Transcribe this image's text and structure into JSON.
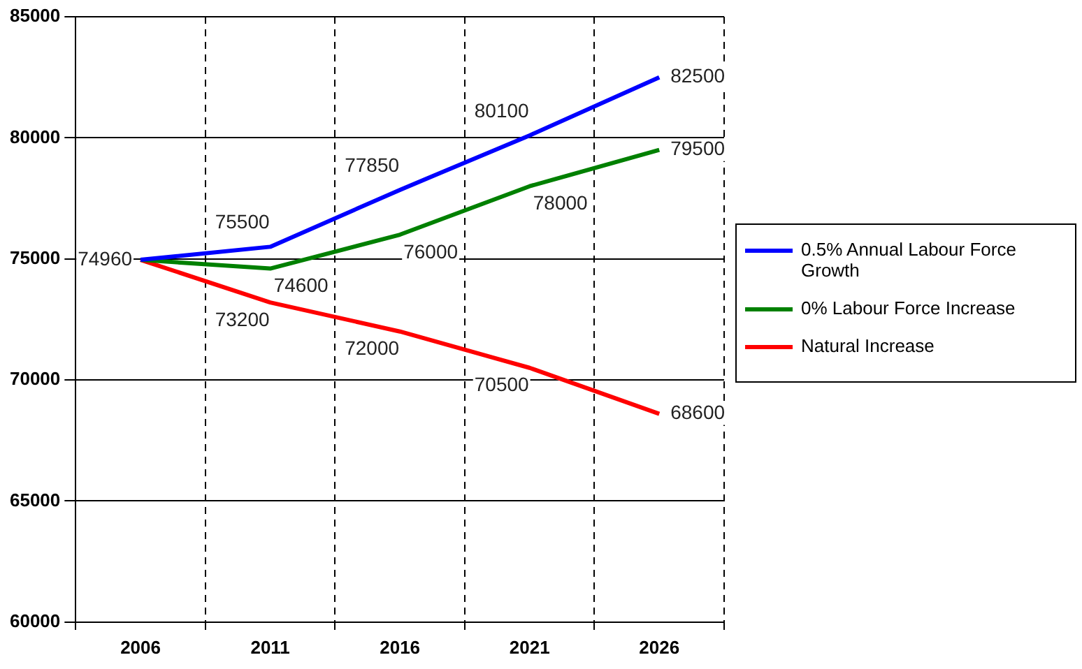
{
  "chart_data": {
    "type": "line",
    "categories": [
      "2006",
      "2011",
      "2016",
      "2021",
      "2026"
    ],
    "series": [
      {
        "name": "0.5% Annual Labour Force Growth",
        "color": "#0000ff",
        "values": [
          74960,
          75500,
          77850,
          80100,
          82500
        ],
        "value_labels": [
          "74960",
          "75500",
          "77850",
          "80100",
          "82500"
        ]
      },
      {
        "name": "0% Labour Force Increase",
        "color": "#008000",
        "values": [
          74960,
          74600,
          76000,
          78000,
          79500
        ],
        "value_labels": [
          null,
          "74600",
          "76000",
          "78000",
          "79500"
        ]
      },
      {
        "name": "Natural Increase",
        "color": "#ff0000",
        "values": [
          74960,
          73200,
          72000,
          70500,
          68600
        ],
        "value_labels": [
          null,
          "73200",
          "72000",
          "70500",
          "68600"
        ]
      }
    ],
    "ylim": [
      60000,
      85000
    ],
    "yticks": [
      60000,
      65000,
      70000,
      75000,
      80000,
      85000
    ],
    "grid": true,
    "legend": "right",
    "marker": "none",
    "line_style": "solid"
  }
}
